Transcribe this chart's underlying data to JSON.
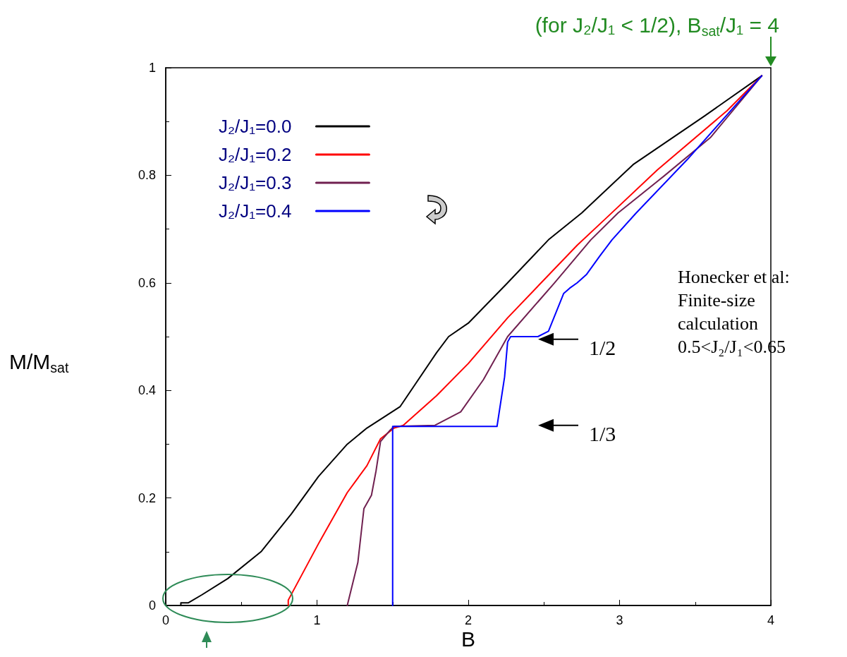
{
  "chart_data": {
    "type": "line",
    "xlabel": "B",
    "ylabel": "M/M$_{sat}$",
    "xlim": [
      0,
      4
    ],
    "ylim": [
      0,
      1
    ],
    "xticks": [
      0,
      1,
      2,
      3,
      4
    ],
    "yticks": [
      0,
      0.2,
      0.4,
      0.6,
      0.8,
      1
    ],
    "grid": false,
    "legend": "top left",
    "marker": "none",
    "line_style": "solid",
    "series": [
      {
        "name": "J₂/J₁=0.0",
        "color": "#000000",
        "x": [
          0.1,
          0.1,
          0.15,
          0.24,
          0.41,
          0.63,
          0.83,
          1.01,
          1.2,
          1.33,
          1.55,
          1.79,
          1.87,
          2.0,
          2.26,
          2.53,
          2.75,
          3.09,
          3.56,
          3.94
        ],
        "values": [
          0,
          0.005,
          0.005,
          0.02,
          0.05,
          0.1,
          0.17,
          0.24,
          0.3,
          0.33,
          0.37,
          0.47,
          0.5,
          0.525,
          0.6,
          0.68,
          0.73,
          0.82,
          0.91,
          0.985
        ]
      },
      {
        "name": "J₂/J₁=0.2",
        "color": "#ff0000",
        "x": [
          0.81,
          0.81,
          1.01,
          1.2,
          1.33,
          1.42,
          1.51,
          1.57,
          1.79,
          2.0,
          2.26,
          2.72,
          2.91,
          3.25,
          3.71,
          3.94
        ],
        "values": [
          0,
          0.01,
          0.115,
          0.21,
          0.26,
          0.31,
          0.33,
          0.335,
          0.39,
          0.45,
          0.535,
          0.67,
          0.72,
          0.81,
          0.92,
          0.985
        ]
      },
      {
        "name": "J₂/J₁=0.3",
        "color": "#702050",
        "x": [
          1.2,
          1.27,
          1.31,
          1.36,
          1.39,
          1.42,
          1.48,
          1.51,
          1.78,
          1.95,
          2.1,
          2.26,
          2.57,
          2.81,
          2.99,
          3.3,
          3.6,
          3.94
        ],
        "values": [
          0,
          0.08,
          0.18,
          0.205,
          0.25,
          0.305,
          0.325,
          0.333,
          0.335,
          0.36,
          0.42,
          0.5,
          0.6,
          0.68,
          0.73,
          0.8,
          0.87,
          0.985
        ]
      },
      {
        "name": "J₂/J₁=0.4",
        "color": "#0000ff",
        "x": [
          1.5,
          1.5,
          2.19,
          2.24,
          2.26,
          2.28,
          2.46,
          2.53,
          2.63,
          2.67,
          2.72,
          2.78,
          2.87,
          2.95,
          3.11,
          3.45,
          3.94
        ],
        "values": [
          0,
          0.333,
          0.333,
          0.425,
          0.49,
          0.5,
          0.5,
          0.51,
          0.58,
          0.59,
          0.6,
          0.615,
          0.65,
          0.68,
          0.73,
          0.83,
          0.985
        ]
      }
    ],
    "annotations": [
      "(for J₂/J₁ < 1/2), B$_{sat}$/J₁ = 4",
      "1/2",
      "1/3",
      "Honecker et al:\nFinite-size\ncalculation\n0.5<J₂/J₁<0.65"
    ]
  }
}
